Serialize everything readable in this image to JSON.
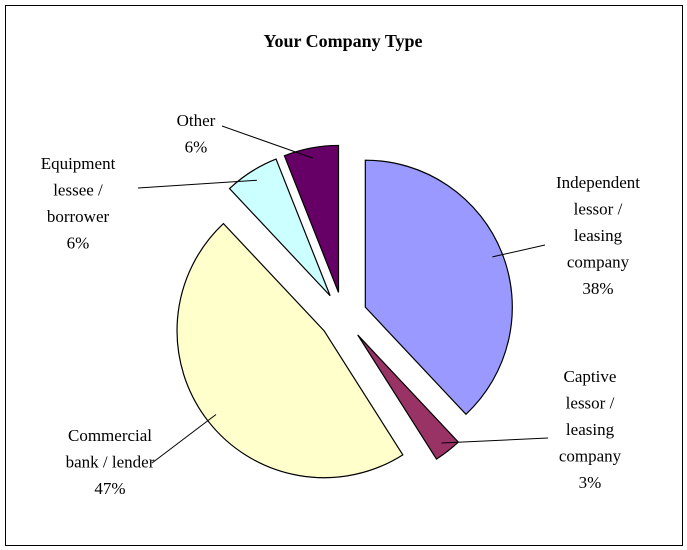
{
  "chart_data": {
    "type": "pie",
    "title": "Your Company Type",
    "categories": [
      "Independent lessor / leasing company",
      "Captive lessor / leasing company",
      "Commercial bank / lender",
      "Equipment lessee / borrower",
      "Other"
    ],
    "values": [
      38,
      3,
      47,
      6,
      6
    ],
    "value_labels": [
      "38%",
      "3%",
      "47%",
      "6%",
      "6%"
    ],
    "colors": [
      "#9999ff",
      "#993366",
      "#ffffcc",
      "#ccffff",
      "#660066"
    ],
    "exploded": true
  }
}
